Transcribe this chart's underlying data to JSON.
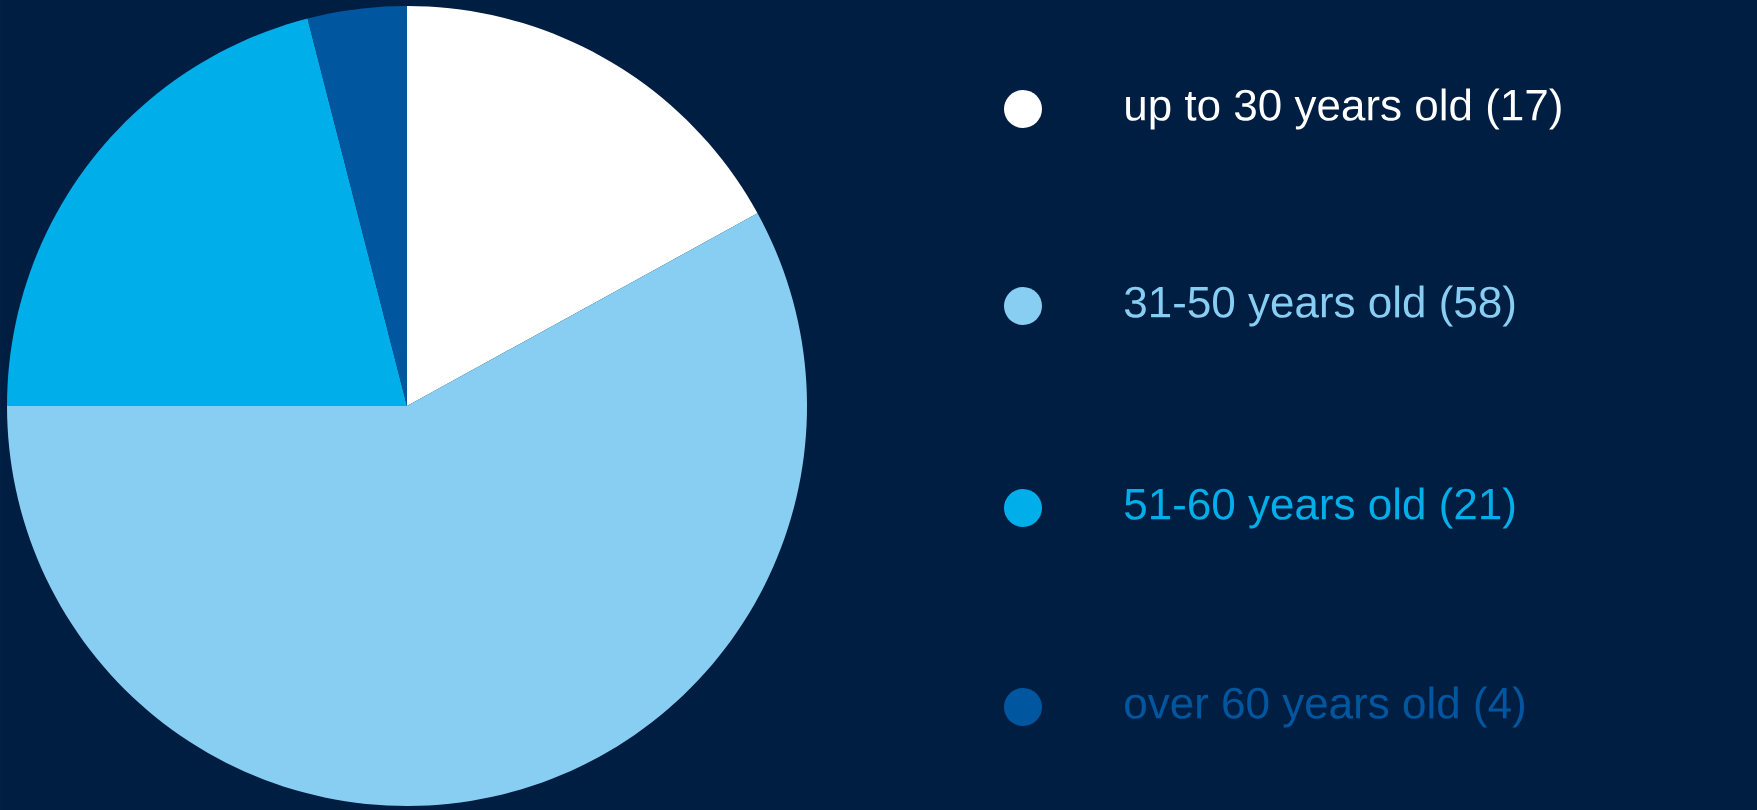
{
  "chart_data": {
    "type": "pie",
    "categories": [
      "up to 30 years old (17)",
      "31-50 years old (58)",
      "51-60 years old (21)",
      "over 60 years old (4)"
    ],
    "values": [
      17,
      58,
      21,
      4
    ],
    "colors": [
      "#ffffff",
      "#87cef2",
      "#00afea",
      "#0057a0"
    ],
    "legend": "right"
  }
}
